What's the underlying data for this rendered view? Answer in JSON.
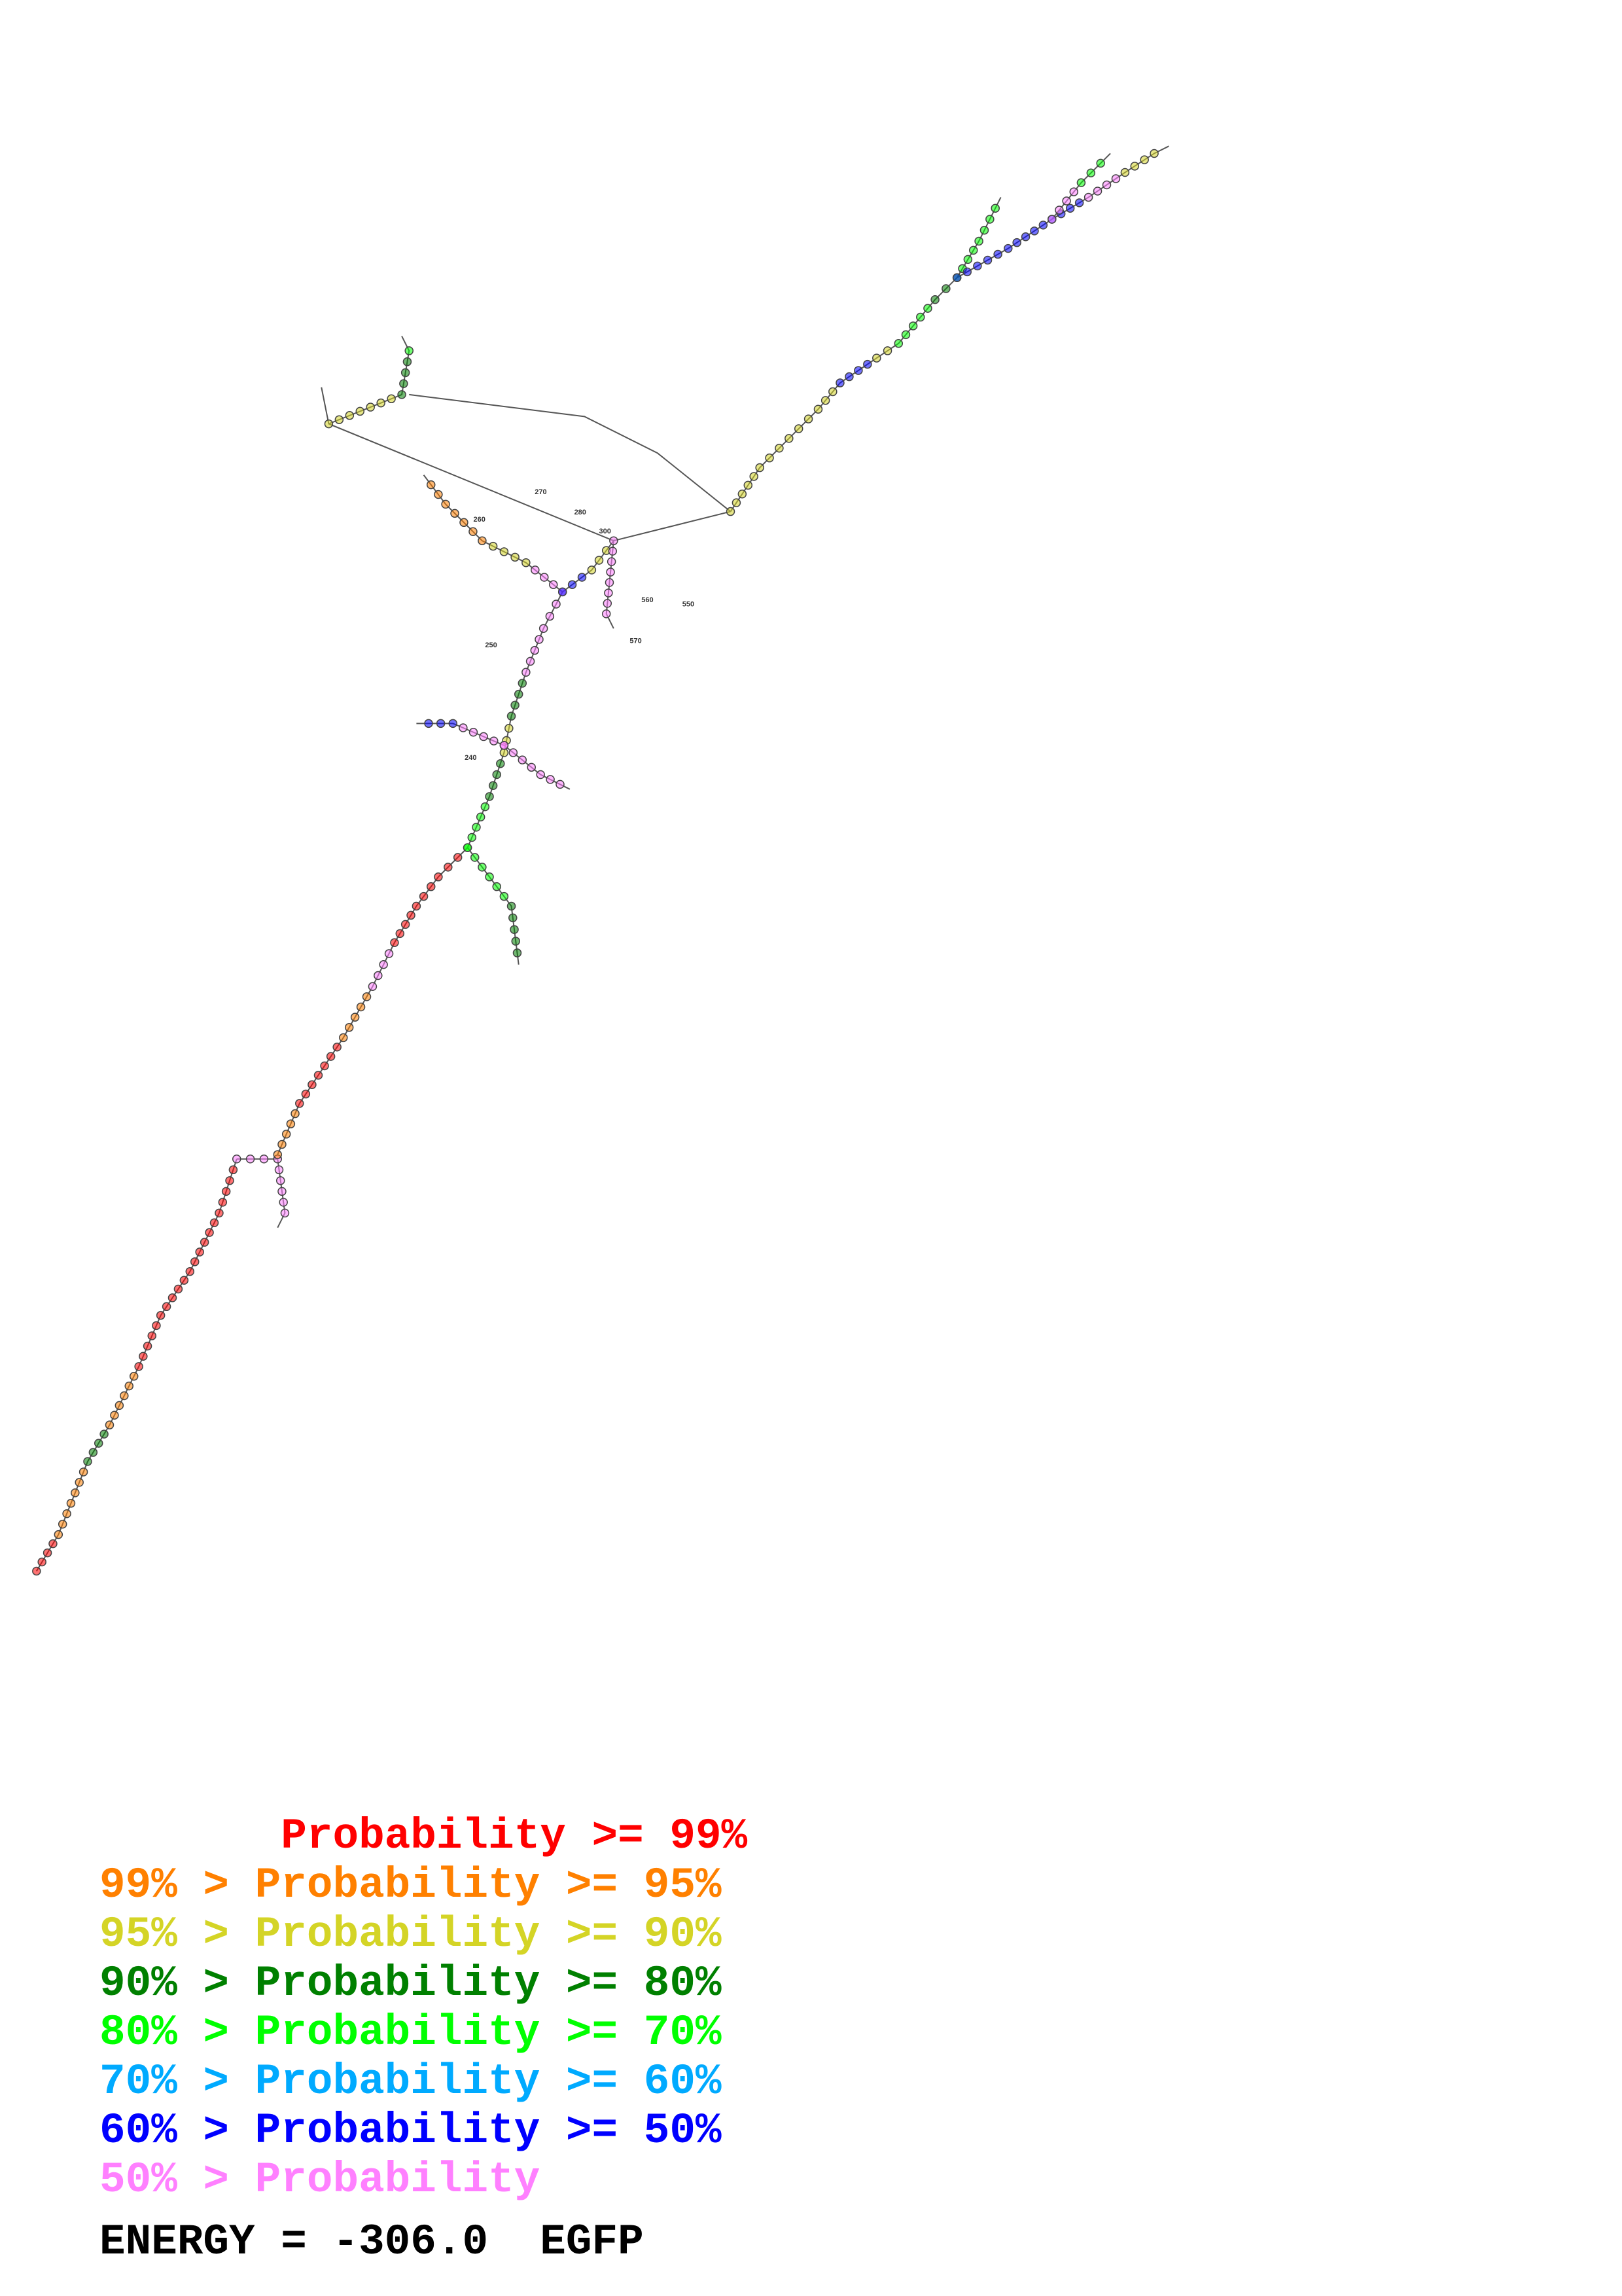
{
  "legend": {
    "rows": [
      {
        "text": "       Probability >= 99%",
        "color": "#ff0000"
      },
      {
        "text": "99% > Probability >= 95%",
        "color": "#ff8000"
      },
      {
        "text": "95% > Probability >= 90%",
        "color": "#d4d426"
      },
      {
        "text": "90% > Probability >= 80%",
        "color": "#008000"
      },
      {
        "text": "80% > Probability >= 70%",
        "color": "#00ff00"
      },
      {
        "text": "70% > Probability >= 60%",
        "color": "#00aaff"
      },
      {
        "text": "60% > Probability >= 50%",
        "color": "#0000ff"
      },
      {
        "text": "50% > Probability",
        "color": "#ff80ff"
      }
    ]
  },
  "energy_line": "ENERGY = -306.0  EGFP",
  "structure_labels": [
    "240",
    "250",
    "260",
    "270",
    "280",
    "300",
    "550",
    "560",
    "570"
  ]
}
